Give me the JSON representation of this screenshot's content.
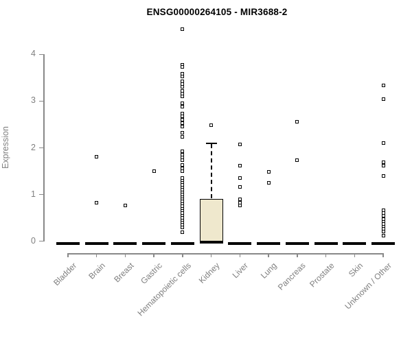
{
  "chart_data": {
    "type": "box",
    "title": "ENSG00000264105 - MIR3688-2",
    "ylabel": "Expression",
    "xlabel": "",
    "ylim": [
      0,
      4
    ],
    "yticks": [
      0,
      1,
      2,
      3,
      4
    ],
    "grid": false,
    "legend": "none",
    "categories": [
      "Bladder",
      "Brain",
      "Breast",
      "Gastric",
      "Hematopoietic cells",
      "Kidney",
      "Liver",
      "Lung",
      "Pancreas",
      "Prostate",
      "Skin",
      "Unknown / Other"
    ],
    "series": [
      {
        "category": "Bladder",
        "q1": 0,
        "median": 0,
        "q3": 0,
        "whisker_low": 0,
        "whisker_high": 0,
        "points": []
      },
      {
        "category": "Brain",
        "q1": 0,
        "median": 0,
        "q3": 0,
        "whisker_low": 0,
        "whisker_high": 0,
        "points": [
          1.81,
          0.83
        ]
      },
      {
        "category": "Breast",
        "q1": 0,
        "median": 0,
        "q3": 0,
        "whisker_low": 0,
        "whisker_high": 0,
        "points": [
          0.77
        ]
      },
      {
        "category": "Gastric",
        "q1": 0,
        "median": 0,
        "q3": 0,
        "whisker_low": 0,
        "whisker_high": 0,
        "points": [
          1.5
        ]
      },
      {
        "category": "Hematopoietic cells",
        "q1": 0,
        "median": 0,
        "q3": 0,
        "whisker_low": 0,
        "whisker_high": 0,
        "points": [
          4.54,
          3.78,
          3.73,
          3.58,
          3.52,
          3.43,
          3.37,
          3.31,
          3.22,
          3.16,
          3.1,
          2.95,
          2.88,
          2.73,
          2.67,
          2.6,
          2.53,
          2.46,
          2.33,
          2.23,
          1.92,
          1.86,
          1.8,
          1.74,
          1.63,
          1.56,
          1.5,
          1.35,
          1.3,
          1.25,
          1.2,
          1.15,
          1.1,
          1.05,
          1.0,
          0.95,
          0.9,
          0.85,
          0.8,
          0.75,
          0.7,
          0.65,
          0.6,
          0.55,
          0.5,
          0.45,
          0.4,
          0.35,
          0.3,
          0.2
        ]
      },
      {
        "category": "Kidney",
        "q1": 0,
        "median": 0,
        "q3": 0.91,
        "whisker_low": 0,
        "whisker_high": 2.1,
        "points": [
          2.49
        ]
      },
      {
        "category": "Liver",
        "q1": 0,
        "median": 0,
        "q3": 0,
        "whisker_low": 0,
        "whisker_high": 0,
        "points": [
          2.07,
          1.62,
          1.36,
          1.17,
          0.9,
          0.83,
          0.77
        ]
      },
      {
        "category": "Lung",
        "q1": 0,
        "median": 0,
        "q3": 0,
        "whisker_low": 0,
        "whisker_high": 0,
        "points": [
          1.48,
          1.25
        ]
      },
      {
        "category": "Pancreas",
        "q1": 0,
        "median": 0,
        "q3": 0,
        "whisker_low": 0,
        "whisker_high": 0,
        "points": [
          2.56,
          1.74
        ]
      },
      {
        "category": "Prostate",
        "q1": 0,
        "median": 0,
        "q3": 0,
        "whisker_low": 0,
        "whisker_high": 0,
        "points": []
      },
      {
        "category": "Skin",
        "q1": 0,
        "median": 0,
        "q3": 0,
        "whisker_low": 0,
        "whisker_high": 0,
        "points": []
      },
      {
        "category": "Unknown / Other",
        "q1": 0,
        "median": 0,
        "q3": 0,
        "whisker_low": 0,
        "whisker_high": 0,
        "points": [
          3.34,
          3.04,
          2.11,
          1.69,
          1.62,
          1.4,
          0.66,
          0.6,
          0.54,
          0.48,
          0.42,
          0.37,
          0.31,
          0.26,
          0.21,
          0.12
        ]
      }
    ],
    "colors": {
      "box_fill": "#efe8cd",
      "box_border": "#000000",
      "marker": "#000000",
      "axis": "#888888",
      "tick_label": "#7f7f7f",
      "title": "#000000"
    },
    "marker": "open-square"
  }
}
